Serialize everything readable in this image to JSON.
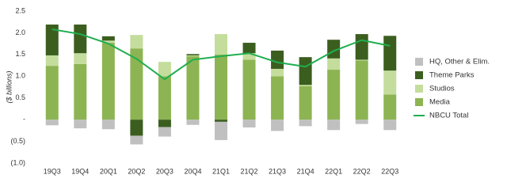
{
  "chart_data": {
    "type": "bar",
    "stacked": true,
    "y_label": "($ billions)",
    "categories": [
      "19Q3",
      "19Q4",
      "20Q1",
      "20Q2",
      "20Q3",
      "20Q4",
      "21Q1",
      "21Q2",
      "21Q3",
      "21Q4",
      "22Q1",
      "22Q2",
      "22Q3"
    ],
    "series": [
      {
        "name": "HQ, Other & Elim.",
        "color": "#c0c0c0",
        "kind": "bar",
        "values": [
          -0.13,
          -0.2,
          -0.22,
          -0.2,
          -0.22,
          -0.12,
          -0.42,
          -0.18,
          -0.26,
          -0.15,
          -0.24,
          -0.1,
          -0.24
        ]
      },
      {
        "name": "Theme Parks",
        "color": "#3b5e1f",
        "kind": "bar",
        "values": [
          0.71,
          0.66,
          0.1,
          -0.37,
          -0.17,
          0.03,
          -0.05,
          0.24,
          0.42,
          0.64,
          0.43,
          0.59,
          0.8
        ]
      },
      {
        "name": "Studios",
        "color": "#c4dd9c",
        "kind": "bar",
        "values": [
          0.24,
          0.25,
          0.05,
          0.31,
          0.33,
          0.02,
          0.47,
          0.15,
          0.17,
          0.03,
          0.26,
          0.02,
          0.55
        ]
      },
      {
        "name": "Media",
        "color": "#8db452",
        "kind": "bar",
        "values": [
          1.24,
          1.28,
          1.77,
          1.64,
          1.0,
          1.46,
          1.5,
          1.38,
          1.0,
          0.77,
          1.15,
          1.36,
          0.58
        ]
      },
      {
        "name": "NBCU Total",
        "color": "#1fae4f",
        "kind": "line",
        "values": [
          2.08,
          1.97,
          1.75,
          1.4,
          0.93,
          1.38,
          1.46,
          1.53,
          1.32,
          1.22,
          1.58,
          1.83,
          1.7
        ]
      }
    ],
    "ylim": [
      -1.0,
      2.5
    ],
    "yticks": [
      2.5,
      {
        "value": 2.0,
        "label": "2.0"
      },
      1.5,
      {
        "value": 1.0,
        "label": "1.0"
      },
      0.5,
      {
        "value": 0,
        "label": "-"
      },
      {
        "value": -0.5,
        "label": "(0.5)"
      },
      {
        "value": -1.0,
        "label": "(1.0)"
      }
    ],
    "legend": "right",
    "grid": false
  }
}
